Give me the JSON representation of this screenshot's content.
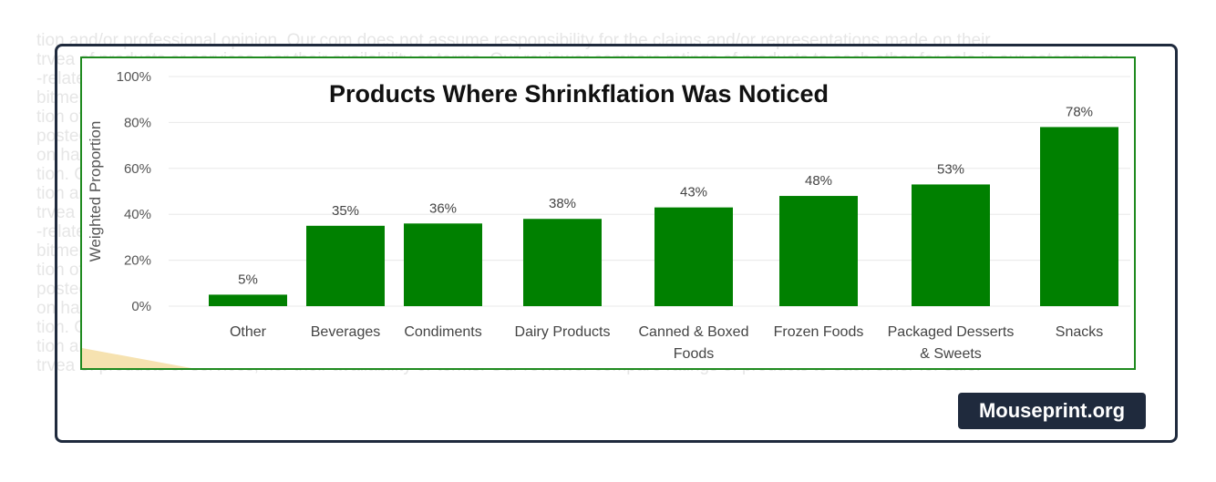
{
  "background_text": [
    "tion and/or professional opinion. Our.com does not assume responsibility for the claims and/or representations made on their",
    "trvea of products or services, nor their availability or terms. Our reviewer compare ratings of products to each other for sale in our category ex.",
    "-related information is provided by the manufacturer or the merchant. We cannot guarantee its accuracy and completeness pr",
    "bitment for a product or service on Our.com and our partners may compensate us for placement of ads on our site as well th",
    "tion of product reviews. Our.com is not responsible for the accuracy of the information provided in third party reviews in",
    "posted on Our.com. Information provided is subject to change without notice and any opinions stated are those of the auth ou",
    "on has not been reviewed or approved by any of the companies mentioned and is for informational purposes only. di",
    "tion. Our.com strives to keep information accurate, however please verify all information before making a purchase in",
    "tion and/or professional opinion. Our.com does not assume responsibility for the claims and/or representations made in",
    "trvea of products or services, nor their availability or terms. Our reviewer compare ratings of products to each other for sale ex.",
    "-related information is provided by the manufacturer or the merchant. We cannot guarantee its accuracy and completeness pr",
    "bitment for a product or service on Our.com and our partners may compensate us for placement of ads on our site as well th",
    "tion of product reviews. Our.com is not responsible for the accuracy of the information provided in third party reviews in",
    "posted on Our.com. Information provided is subject to change without notice and any opinions stated are those of the auth ou",
    "on has not been reviewed or approved by any of the companies mentioned and is for informational purposes only. di",
    "tion. Our.com strives to keep information accurate, however please verify all information before making a purchase in",
    "tion and/or professional opinion. Our.com does not assume responsibility for the claims and/or representations made on their",
    "trvea of products or services, nor their availability or terms. Our reviewer compare ratings of products to each other for sale."
  ],
  "watermark": "Mouseprint.org",
  "colors": {
    "bar": "#008000",
    "frame": "#1f8a1f",
    "card_border": "#1f2a3d",
    "badge_bg": "#1f2a3d"
  },
  "chart_data": {
    "type": "bar",
    "title": "Products Where Shrinkflation Was Noticed",
    "xlabel": "",
    "ylabel": "Weighted Proportion",
    "categories": [
      [
        "Other"
      ],
      [
        "Beverages"
      ],
      [
        "Condiments"
      ],
      [
        "Dairy Products"
      ],
      [
        "Canned & Boxed",
        "Foods"
      ],
      [
        "Frozen Foods"
      ],
      [
        "Packaged Desserts",
        "& Sweets"
      ],
      [
        "Snacks"
      ]
    ],
    "values": [
      5,
      35,
      36,
      38,
      43,
      48,
      53,
      78
    ],
    "data_labels": [
      "5%",
      "35%",
      "36%",
      "38%",
      "43%",
      "48%",
      "53%",
      "78%"
    ],
    "ylim": [
      0,
      100
    ],
    "yticks": [
      "0%",
      "20%",
      "40%",
      "60%",
      "80%",
      "100%"
    ],
    "grid": true,
    "legend": "none"
  }
}
